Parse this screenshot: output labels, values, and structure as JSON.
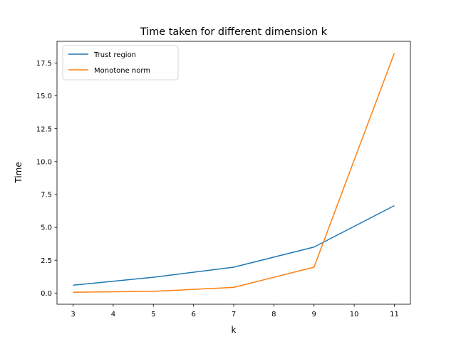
{
  "chart_data": {
    "type": "line",
    "title": "Time taken for different dimension k",
    "xlabel": "k",
    "ylabel": "Time",
    "x": [
      3,
      5,
      7,
      9,
      11
    ],
    "series": [
      {
        "name": "Trust region",
        "color": "#1f77b4",
        "values": [
          0.6,
          1.2,
          1.97,
          3.5,
          6.65
        ]
      },
      {
        "name": "Monotone norm",
        "color": "#ff7f0e",
        "values": [
          0.06,
          0.13,
          0.43,
          1.97,
          18.25
        ]
      }
    ],
    "xlim": [
      2.6,
      11.4
    ],
    "ylim": [
      -0.85,
      19.15
    ],
    "xticks": [
      3,
      4,
      5,
      6,
      7,
      8,
      9,
      10,
      11
    ],
    "yticks": [
      0.0,
      2.5,
      5.0,
      7.5,
      10.0,
      12.5,
      15.0,
      17.5
    ],
    "ytick_labels": [
      "0.0",
      "2.5",
      "5.0",
      "7.5",
      "10.0",
      "12.5",
      "15.0",
      "17.5"
    ],
    "grid": false,
    "legend_position": "top-left"
  }
}
